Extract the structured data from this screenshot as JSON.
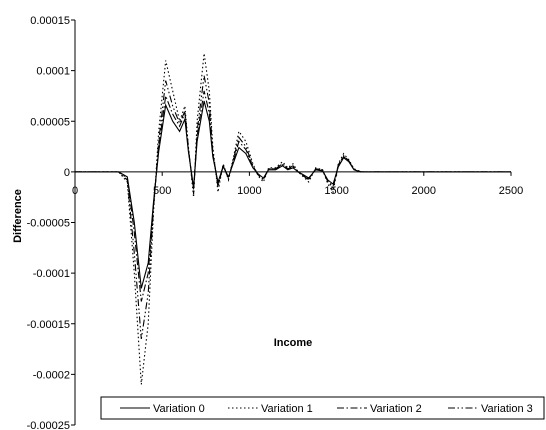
{
  "chart_data": {
    "type": "line",
    "title": "",
    "xlabel": "Income",
    "ylabel": "Difference",
    "xlim": [
      0,
      2500
    ],
    "ylim": [
      -0.00025,
      0.00015
    ],
    "x_ticks": [
      {
        "v": 0,
        "label": "0"
      },
      {
        "v": 500,
        "label": "500"
      },
      {
        "v": 1000,
        "label": "1000"
      },
      {
        "v": 1500,
        "label": "1500"
      },
      {
        "v": 2000,
        "label": "2000"
      },
      {
        "v": 2500,
        "label": "2500"
      }
    ],
    "y_ticks": [
      {
        "v": 0.00015,
        "label": "0.00015"
      },
      {
        "v": 0.0001,
        "label": "0.0001"
      },
      {
        "v": 5e-05,
        "label": "0.00005"
      },
      {
        "v": 0,
        "label": "0"
      },
      {
        "v": -5e-05,
        "label": "-0.00005"
      },
      {
        "v": -0.0001,
        "label": "-0.0001"
      },
      {
        "v": -0.00015,
        "label": "-0.00015"
      },
      {
        "v": -0.0002,
        "label": "-0.0002"
      },
      {
        "v": -0.00025,
        "label": "-0.00025"
      }
    ],
    "grid": false,
    "legend_position": "bottom",
    "x": [
      0,
      250,
      300,
      340,
      380,
      420,
      450,
      480,
      520,
      560,
      600,
      630,
      650,
      680,
      700,
      740,
      770,
      790,
      820,
      850,
      880,
      900,
      940,
      980,
      1020,
      1050,
      1080,
      1110,
      1150,
      1190,
      1220,
      1250,
      1280,
      1310,
      1340,
      1380,
      1420,
      1450,
      1480,
      1510,
      1540,
      1570,
      1600,
      1640,
      1700,
      2000,
      2500
    ],
    "series": [
      {
        "name": "Variation 0",
        "dash": "",
        "values": [
          0,
          0,
          -5e-06,
          -5e-05,
          -0.000115,
          -9e-05,
          -3e-05,
          2e-05,
          6.6e-05,
          5e-05,
          4e-05,
          5.2e-05,
          2e-05,
          -1.5e-05,
          3e-05,
          7e-05,
          5e-05,
          1.5e-05,
          -1e-05,
          5e-06,
          -5e-06,
          5e-06,
          2.4e-05,
          1.8e-05,
          4e-06,
          -2e-06,
          -6e-06,
          2e-06,
          2e-06,
          6e-06,
          2e-06,
          4e-06,
          0,
          -3e-06,
          -6e-06,
          2e-06,
          1e-06,
          -8e-06,
          -1.2e-05,
          5e-06,
          1.4e-05,
          1e-05,
          2e-06,
          0,
          0,
          0,
          0
        ]
      },
      {
        "name": "Variation 1",
        "dash": "1.5,2.5",
        "values": [
          0,
          0,
          -1e-05,
          -0.0001,
          -0.00021,
          -0.00015,
          -4e-05,
          4e-05,
          0.00011,
          8e-05,
          5e-05,
          6.5e-05,
          2.5e-05,
          -2.5e-05,
          5e-05,
          0.000117,
          8e-05,
          2.5e-05,
          -2e-05,
          8e-06,
          -8e-06,
          8e-06,
          4e-05,
          3e-05,
          8e-06,
          -4e-06,
          -1e-05,
          4e-06,
          4e-06,
          1e-05,
          4e-06,
          8e-06,
          0,
          -5e-06,
          -1e-05,
          4e-06,
          2e-06,
          -1.2e-05,
          -2e-05,
          8e-06,
          1.8e-05,
          1.2e-05,
          3e-06,
          0,
          0,
          0,
          0
        ]
      },
      {
        "name": "Variation 2",
        "dash": "7,2.5,1.5,2.5",
        "values": [
          0,
          0,
          -6e-06,
          -6e-05,
          -0.000128,
          -0.0001,
          -3.3e-05,
          2.5e-05,
          7.5e-05,
          5.7e-05,
          4.5e-05,
          5.8e-05,
          2.2e-05,
          -1.8e-05,
          3.5e-05,
          8e-05,
          5.8e-05,
          1.8e-05,
          -1.2e-05,
          6e-06,
          -6e-06,
          6e-06,
          3e-05,
          2.2e-05,
          5e-06,
          -3e-06,
          -7e-06,
          3e-06,
          3e-06,
          7e-06,
          3e-06,
          5e-06,
          0,
          -4e-06,
          -7e-06,
          3e-06,
          1e-06,
          -9e-06,
          -1.4e-05,
          6e-06,
          1.5e-05,
          1.1e-05,
          2e-06,
          0,
          0,
          0,
          0
        ]
      },
      {
        "name": "Variation 3",
        "dash": "7,2.5,1.5,2.5,1.5,2.5",
        "values": [
          0,
          0,
          -8e-06,
          -8e-05,
          -0.000165,
          -0.00012,
          -3.6e-05,
          3e-05,
          9e-05,
          6.5e-05,
          4.8e-05,
          6e-05,
          2.4e-05,
          -2.2e-05,
          4e-05,
          9.5e-05,
          6.8e-05,
          2e-05,
          -1.5e-05,
          7e-06,
          -7e-06,
          7e-06,
          3.4e-05,
          2.5e-05,
          6e-06,
          -3e-06,
          -8e-06,
          3e-06,
          3e-06,
          8e-06,
          3e-06,
          6e-06,
          0,
          -4e-06,
          -8e-06,
          3e-06,
          2e-06,
          -1e-05,
          -1.6e-05,
          7e-06,
          1.6e-05,
          1.1e-05,
          3e-06,
          0,
          0,
          0,
          0
        ]
      }
    ]
  }
}
